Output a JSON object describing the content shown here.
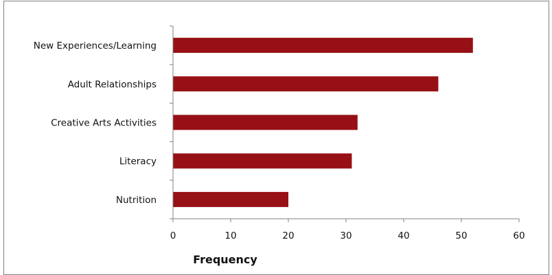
{
  "chart_data": {
    "type": "bar",
    "orientation": "horizontal",
    "categories": [
      "New Experiences/Learning",
      "Adult Relationships",
      "Creative Arts Activities",
      "Literacy",
      "Nutrition"
    ],
    "values": [
      52,
      46,
      32,
      31,
      20
    ],
    "xlabel": "Frequency",
    "ylabel": "",
    "xlim": [
      0,
      60
    ],
    "xticks": [
      0,
      10,
      20,
      30,
      40,
      50,
      60
    ],
    "grid": false,
    "bar_color": "#961015"
  }
}
